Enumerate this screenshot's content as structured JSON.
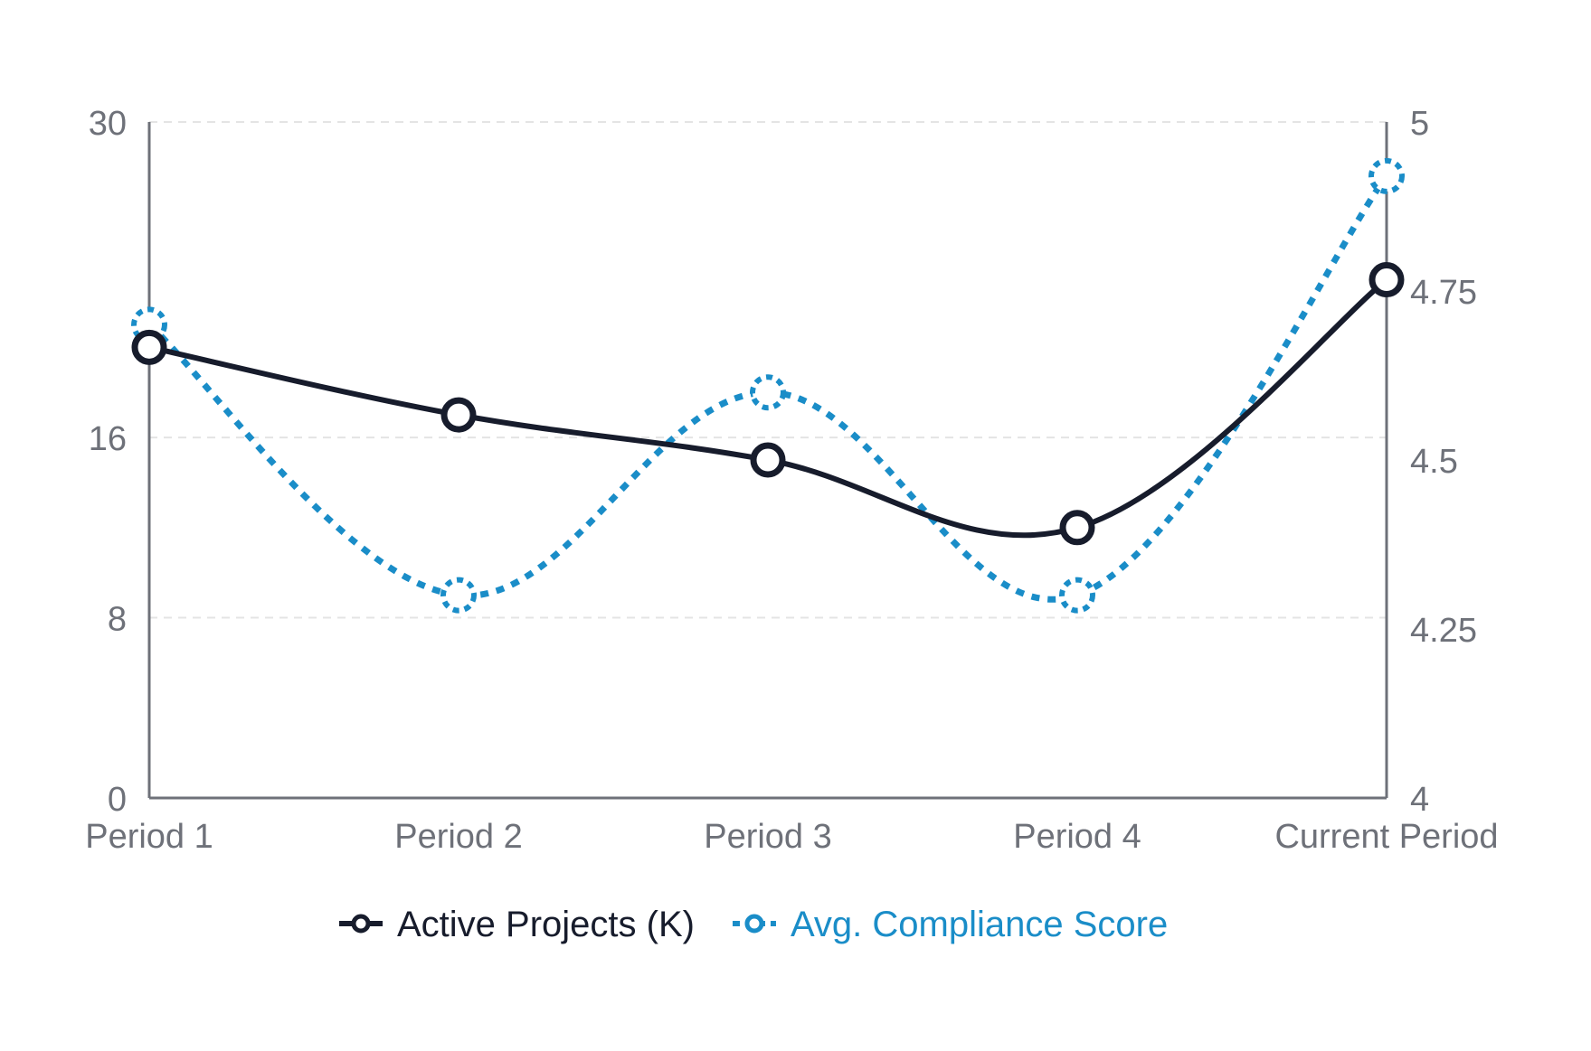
{
  "chart_data": {
    "type": "line",
    "categories": [
      "Period 1",
      "Period 2",
      "Period 3",
      "Period 4",
      "Current Period"
    ],
    "series": [
      {
        "name": "Active Projects (K)",
        "axis": "left",
        "color": "#171c2c",
        "style": "solid",
        "values": [
          20,
          17,
          15,
          12,
          23
        ]
      },
      {
        "name": "Avg. Compliance Score",
        "axis": "right",
        "color": "#1a8dc8",
        "style": "dotted",
        "values": [
          4.7,
          4.3,
          4.6,
          4.3,
          4.92
        ]
      }
    ],
    "y_left": {
      "ticks": [
        0,
        8,
        16,
        30
      ],
      "ylim": [
        0,
        30
      ]
    },
    "y_right": {
      "ticks": [
        "4",
        "4.25",
        "4.5",
        "4.75",
        "5"
      ],
      "ylim": [
        4,
        5
      ]
    },
    "grid": true,
    "legend_position": "bottom-center",
    "axis_color": "#6e7179",
    "grid_color": "#e4e4e4"
  }
}
